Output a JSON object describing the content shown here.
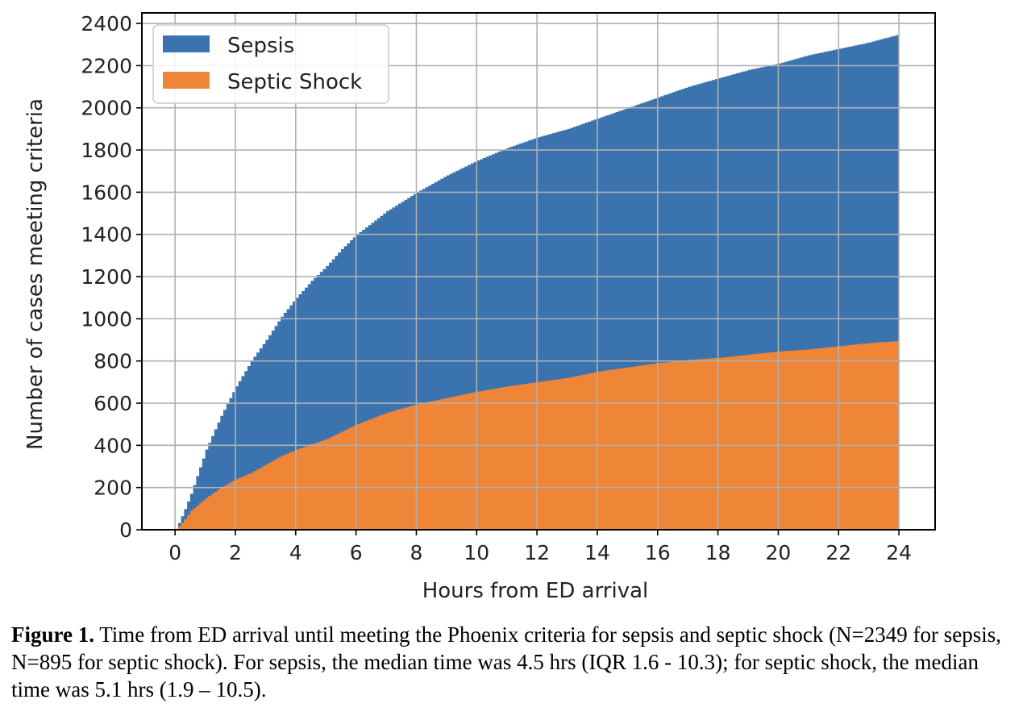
{
  "chart_data": {
    "type": "area",
    "xlabel": "Hours from ED arrival",
    "ylabel": "Number of cases meeting criteria",
    "xlim": [
      -1.1,
      25.2
    ],
    "ylim": [
      0,
      2450
    ],
    "xticks": [
      0,
      2,
      4,
      6,
      8,
      10,
      12,
      14,
      16,
      18,
      20,
      22,
      24
    ],
    "yticks": [
      0,
      200,
      400,
      600,
      800,
      1000,
      1200,
      1400,
      1600,
      1800,
      2000,
      2200,
      2400
    ],
    "grid": true,
    "legend_position": "top-left",
    "step": true,
    "series": [
      {
        "name": "Sepsis",
        "color": "#3a73ae",
        "x": [
          0,
          0.25,
          0.5,
          1,
          1.5,
          2,
          2.5,
          3,
          3.5,
          4,
          4.5,
          5,
          5.5,
          6,
          7,
          8,
          9,
          10,
          11,
          12,
          13,
          14,
          15,
          16,
          17,
          18,
          19,
          20,
          21,
          22,
          23,
          24
        ],
        "y": [
          0,
          80,
          170,
          380,
          540,
          680,
          800,
          900,
          1010,
          1100,
          1180,
          1250,
          1330,
          1400,
          1510,
          1600,
          1680,
          1750,
          1810,
          1860,
          1900,
          1950,
          2000,
          2050,
          2100,
          2140,
          2180,
          2210,
          2250,
          2280,
          2310,
          2349
        ]
      },
      {
        "name": "Septic Shock",
        "color": "#ee8537",
        "x": [
          0,
          0.25,
          0.5,
          1,
          1.5,
          2,
          2.5,
          3,
          3.5,
          4,
          5,
          6,
          7,
          8,
          9,
          10,
          11,
          12,
          13,
          14,
          15,
          16,
          17,
          18,
          19,
          20,
          21,
          22,
          23,
          24
        ],
        "y": [
          0,
          40,
          90,
          150,
          200,
          240,
          270,
          310,
          350,
          380,
          430,
          500,
          555,
          595,
          625,
          655,
          680,
          700,
          720,
          750,
          770,
          790,
          805,
          815,
          830,
          845,
          855,
          870,
          885,
          895
        ]
      }
    ]
  },
  "caption": {
    "label": "Figure 1.",
    "text": " Time from ED arrival until meeting the Phoenix criteria for sepsis and septic shock (N=2349 for sepsis, N=895 for septic shock). For sepsis, the median time was 4.5 hrs (IQR 1.6 - 10.3); for septic shock, the median time was 5.1 hrs (1.9 – 10.5)."
  }
}
